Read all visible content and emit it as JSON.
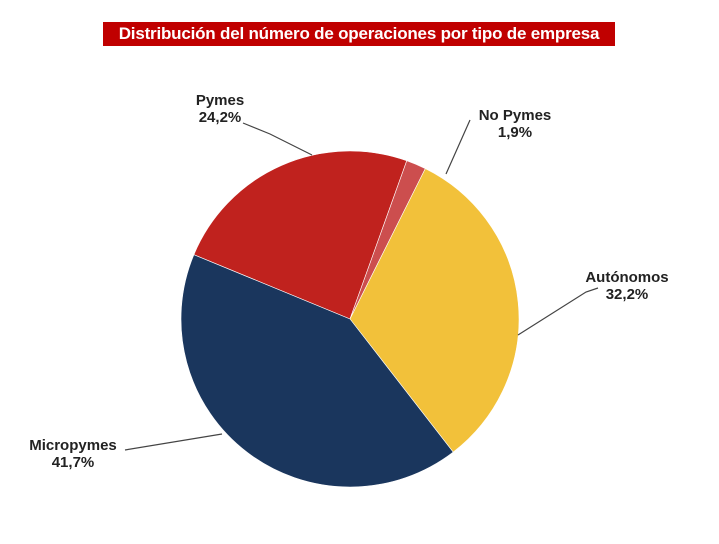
{
  "chart_data": {
    "type": "pie",
    "title": "Distribución del número de operaciones por  tipo de empresa",
    "start_angle_deg": 157.5,
    "direction": "clockwise",
    "slices": [
      {
        "name": "Pymes",
        "label": "24,2%",
        "value": 24.2,
        "color": "#c0221e"
      },
      {
        "name": "No Pymes",
        "label": "1,9%",
        "value": 1.9,
        "color": "#cc4e4e"
      },
      {
        "name": "Autónomos",
        "label": "32,2%",
        "value": 32.2,
        "color": "#f2c13a"
      },
      {
        "name": "Micropymes",
        "label": "41,7%",
        "value": 41.7,
        "color": "#1a365d"
      }
    ]
  }
}
